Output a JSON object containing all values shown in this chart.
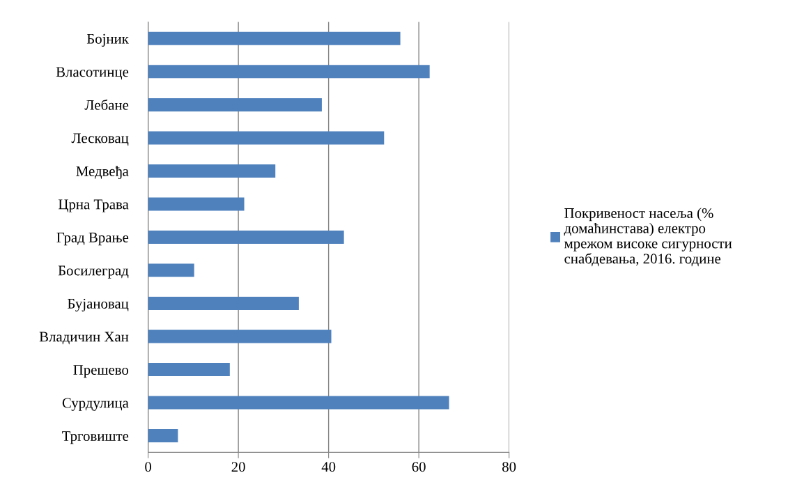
{
  "chart_data": {
    "type": "bar",
    "orientation": "horizontal",
    "categories": [
      "Бојник",
      "Власотинце",
      "Лебане",
      "Лесковац",
      "Медвеђа",
      "Црна Трава",
      "Град Врање",
      "Босилеград",
      "Бујановац",
      "Владичин Хан",
      "Прешево",
      "Сурдулица",
      "Трговиште"
    ],
    "series": [
      {
        "name": "Покривеност насеља (% домаћинстава) електро мрежом високе сигурности снабдевања, 2016. године",
        "color": "#4f81bd",
        "values": [
          55.9,
          62.4,
          38.5,
          52.3,
          28.2,
          21.3,
          43.4,
          10.2,
          33.4,
          40.6,
          18.1,
          66.7,
          6.6
        ]
      }
    ],
    "xlim": [
      0,
      80
    ],
    "xticks": [
      0,
      20,
      40,
      60,
      80
    ],
    "grid": "x",
    "legend": "right"
  }
}
